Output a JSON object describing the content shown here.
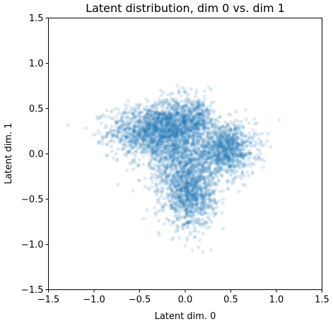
{
  "chart_data": {
    "type": "scatter",
    "title": "Latent distribution, dim 0 vs. dim 1",
    "xlabel": "Latent dim. 0",
    "ylabel": "Latent dim. 1",
    "xlim": [
      -1.5,
      1.5
    ],
    "ylim": [
      -1.5,
      1.5
    ],
    "xticks": [
      -1.5,
      -1.0,
      -0.5,
      0.0,
      0.5,
      1.0,
      1.5
    ],
    "yticks": [
      -1.5,
      -1.0,
      -0.5,
      0.0,
      0.5,
      1.0,
      1.5
    ],
    "xtick_labels": [
      "−1.5",
      "−1.0",
      "−0.5",
      "0.0",
      "0.5",
      "1.0",
      "1.5"
    ],
    "ytick_labels": [
      "−1.5",
      "−1.0",
      "−0.5",
      "0.0",
      "0.5",
      "1.0",
      "1.5"
    ],
    "grid": false,
    "marker_color": "#1f77b4",
    "marker_alpha": 0.15,
    "clusters": [
      {
        "cx": -0.4,
        "cy": 0.25,
        "sx": 0.22,
        "sy": 0.14,
        "n": 1100
      },
      {
        "cx": -0.1,
        "cy": 0.35,
        "sx": 0.15,
        "sy": 0.14,
        "n": 700
      },
      {
        "cx": 0.45,
        "cy": 0.05,
        "sx": 0.16,
        "sy": 0.15,
        "n": 1000
      },
      {
        "cx": 0.05,
        "cy": -0.45,
        "sx": 0.14,
        "sy": 0.18,
        "n": 1000
      },
      {
        "cx": -0.05,
        "cy": -0.05,
        "sx": 0.2,
        "sy": 0.18,
        "n": 800
      },
      {
        "cx": 0.15,
        "cy": 0.4,
        "sx": 0.08,
        "sy": 0.12,
        "n": 250
      }
    ]
  }
}
